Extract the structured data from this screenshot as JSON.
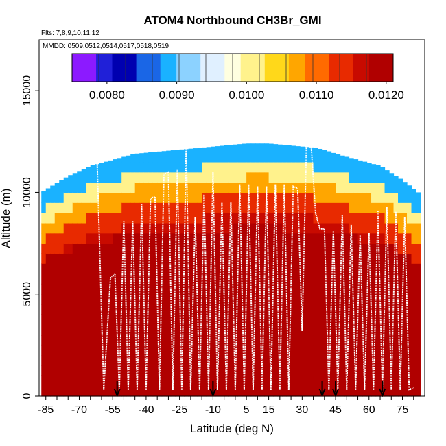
{
  "chart_data": {
    "type": "heatmap",
    "title": "ATOM4 Northbound CH3Br_GMI",
    "flights_label": "Flts: 7,8,9,10,11,12",
    "dates_label": "MMDD: 0509,0512,0514,0517,0518,0519",
    "xlabel": "Latitude (deg N)",
    "ylabel": "Altitude (m)",
    "xlim": [
      -88,
      85
    ],
    "ylim": [
      0,
      17500
    ],
    "x_ticks": [
      -85,
      -70,
      -55,
      -40,
      -25,
      -10,
      5,
      15,
      30,
      45,
      60,
      75
    ],
    "y_ticks": [
      0,
      5000,
      10000,
      15000
    ],
    "colorbar": {
      "min": 0.0075,
      "max": 0.0121,
      "ticks": [
        "0.0080",
        "0.0090",
        "0.0100",
        "0.0110",
        "0.0120"
      ],
      "tick_values": [
        0.008,
        0.009,
        0.01,
        0.011,
        0.012
      ],
      "colors": [
        "#8c1aff",
        "#2020d8",
        "#0000b0",
        "#1a66e6",
        "#1ab2ff",
        "#8cd2ff",
        "#e0f0ff",
        "#ffffe0",
        "#fff28c",
        "#ffd81a",
        "#ffa600",
        "#ff6a00",
        "#e82a00",
        "#c80a00",
        "#b00000"
      ]
    },
    "ridge": {
      "lat": [
        -87,
        -75,
        -65,
        -55,
        -45,
        -35,
        -25,
        -15,
        -5,
        5,
        15,
        25,
        35,
        40,
        45,
        55,
        65,
        75,
        82
      ],
      "altitude": [
        10000,
        10800,
        11300,
        11600,
        11900,
        12000,
        12100,
        12200,
        12300,
        12400,
        12400,
        12300,
        12200,
        12100,
        11900,
        11600,
        11300,
        10600,
        10000
      ]
    },
    "surface_markers_lat": [
      -53,
      -10,
      39,
      45,
      66
    ],
    "flight_profile": {
      "lat": [
        -87,
        -83,
        -80,
        -77,
        -74,
        -71,
        -68,
        -65,
        -62,
        -59,
        -56,
        -54,
        -52,
        -50,
        -48,
        -46,
        -44,
        -42,
        -40,
        -38,
        -36,
        -34,
        -32,
        -30,
        -28,
        -26,
        -24,
        -22,
        -20,
        -18,
        -16,
        -14,
        -12,
        -10,
        -8,
        -6,
        -4,
        -2,
        0,
        2,
        4,
        6,
        8,
        10,
        12,
        14,
        16,
        18,
        20,
        22,
        24,
        26,
        28,
        30,
        32,
        34,
        36,
        38,
        40,
        42,
        44,
        46,
        48,
        50,
        52,
        54,
        56,
        58,
        60,
        62,
        64,
        66,
        68,
        70,
        72,
        74,
        76,
        78,
        80
      ],
      "altitude": [
        10200,
        10500,
        10900,
        11100,
        11300,
        11400,
        11500,
        11600,
        11600,
        300,
        5800,
        6000,
        300,
        8600,
        300,
        8600,
        300,
        9400,
        300,
        9700,
        9800,
        300,
        10900,
        11000,
        300,
        11100,
        300,
        12300,
        300,
        8800,
        300,
        9900,
        300,
        11000,
        300,
        9500,
        300,
        9500,
        300,
        10400,
        300,
        10400,
        300,
        10300,
        300,
        10300,
        300,
        10400,
        300,
        10400,
        300,
        10300,
        10200,
        3200,
        12600,
        12400,
        9000,
        8200,
        8200,
        300,
        8100,
        300,
        8900,
        300,
        8400,
        300,
        7900,
        300,
        8000,
        300,
        9100,
        300,
        9300,
        300,
        9100,
        300,
        8800,
        300,
        400
      ]
    }
  }
}
